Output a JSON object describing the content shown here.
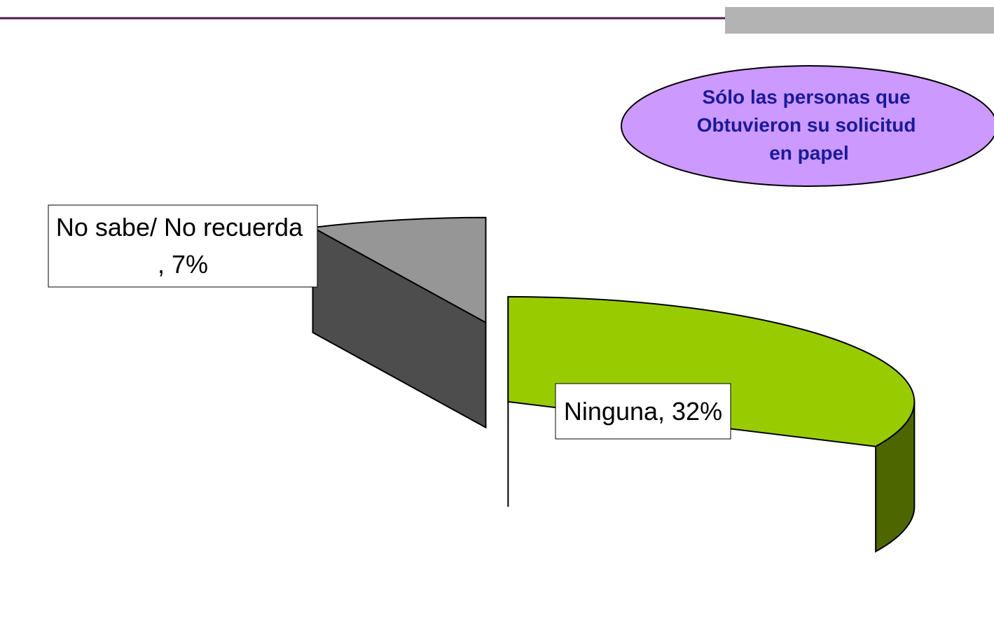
{
  "chart_data": {
    "type": "pie3d",
    "categories": [
      "No sabe/ No recuerda",
      "Ninguna"
    ],
    "values": [
      7,
      32
    ],
    "value_labels": [
      ", 7%",
      ", 32%"
    ],
    "colors": [
      "#969696",
      "#99cc00"
    ],
    "side_colors": [
      "#4d4d4d",
      "#4d6600"
    ],
    "annotation": [
      "Sólo las personas que",
      "Obtuvieron su solicitud",
      "en papel"
    ]
  }
}
